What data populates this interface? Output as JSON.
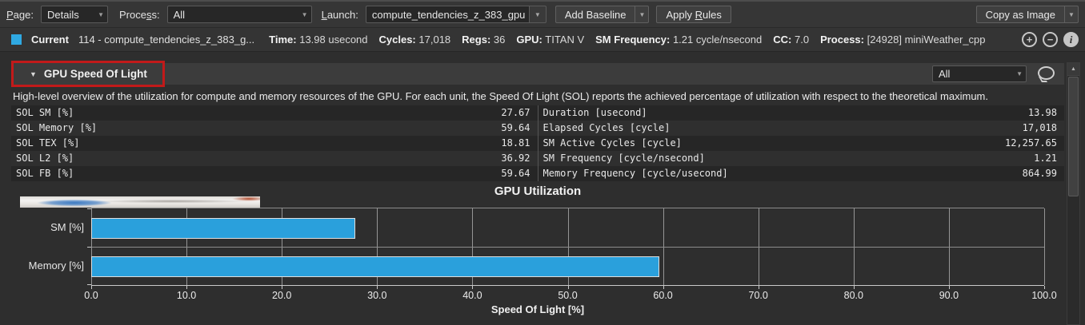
{
  "icons": {
    "dropdown_arrow": "▼",
    "section_caret": "▼",
    "plus": "+",
    "minus": "−",
    "info": "i",
    "scroll_up": "▲"
  },
  "toolbar": {
    "page_label": "Page:",
    "page_value": "Details",
    "process_label": "Process:",
    "process_value": "All",
    "launch_label": "Launch:",
    "launch_value": "compute_tendencies_z_383_gpu",
    "add_baseline_label": "Add Baseline",
    "apply_rules_label": "Apply Rules",
    "copy_as_image_label": "Copy as Image"
  },
  "current_bar": {
    "swatch_color": "#2fa9e2",
    "label": "Current",
    "kernel": "114 - compute_tendencies_z_383_g...",
    "stats": [
      {
        "label": "Time:",
        "value": "13.98 usecond"
      },
      {
        "label": "Cycles:",
        "value": "17,018"
      },
      {
        "label": "Regs:",
        "value": "36"
      },
      {
        "label": "GPU:",
        "value": "TITAN V"
      },
      {
        "label": "SM Frequency:",
        "value": "1.21 cycle/nsecond"
      },
      {
        "label": "CC:",
        "value": "7.0"
      },
      {
        "label": "Process:",
        "value": "[24928] miniWeather_cpp"
      }
    ]
  },
  "section_header": {
    "title": "GPU Speed Of Light",
    "filter_value": "All"
  },
  "description": "High-level overview of the utilization for compute and memory resources of the GPU. For each unit, the Speed Of Light (SOL) reports the achieved percentage of utilization with respect to the theoretical maximum.",
  "sol_table": {
    "left": [
      {
        "label": "SOL SM [%]",
        "value": "27.67"
      },
      {
        "label": "SOL Memory [%]",
        "value": "59.64"
      },
      {
        "label": "SOL TEX [%]",
        "value": "18.81"
      },
      {
        "label": "SOL L2 [%]",
        "value": "36.92"
      },
      {
        "label": "SOL FB [%]",
        "value": "59.64"
      }
    ],
    "right": [
      {
        "label": "Duration [usecond]",
        "value": "13.98"
      },
      {
        "label": "Elapsed Cycles [cycle]",
        "value": "17,018"
      },
      {
        "label": "SM Active Cycles [cycle]",
        "value": "12,257.65"
      },
      {
        "label": "SM Frequency [cycle/nsecond]",
        "value": "1.21"
      },
      {
        "label": "Memory Frequency [cycle/usecond]",
        "value": "864.99"
      }
    ]
  },
  "chart_data": {
    "type": "bar",
    "orientation": "horizontal",
    "title": "GPU Utilization",
    "categories": [
      "SM [%]",
      "Memory [%]"
    ],
    "values": [
      27.67,
      59.64
    ],
    "xlabel": "Speed Of Light [%]",
    "ylabel": "",
    "xlim": [
      0,
      100
    ],
    "xtick_labels": [
      "0.0",
      "10.0",
      "20.0",
      "30.0",
      "40.0",
      "50.0",
      "60.0",
      "70.0",
      "80.0",
      "90.0",
      "100.0"
    ],
    "grid": true,
    "legend": false,
    "bar_color": "#2aa0dc"
  }
}
